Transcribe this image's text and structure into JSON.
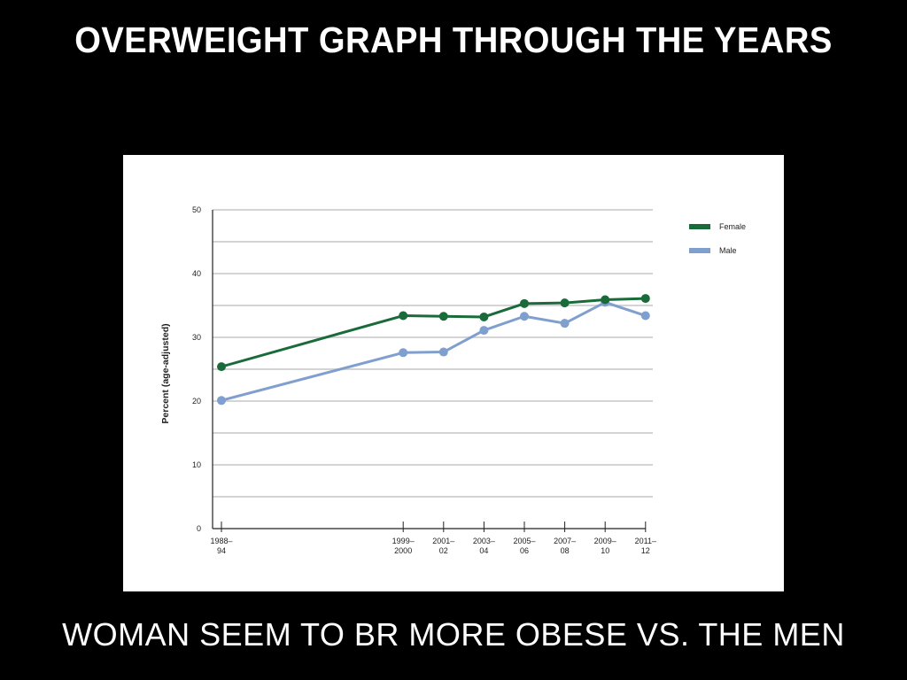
{
  "slide": {
    "title": "OVERWEIGHT GRAPH THROUGH THE YEARS",
    "caption": "WOMAN SEEM TO BR MORE OBESE VS. THE MEN"
  },
  "chart_data": {
    "type": "line",
    "title": "",
    "xlabel": "",
    "ylabel": "Percent (age-adjusted)",
    "ylim": [
      0,
      50
    ],
    "yticks": [
      0,
      10,
      20,
      30,
      40,
      50
    ],
    "grid": true,
    "legend_position": "top-right",
    "categories": [
      [
        "1988–",
        "94"
      ],
      [
        "1999–",
        "2000"
      ],
      [
        "2001–",
        "02"
      ],
      [
        "2003–",
        "04"
      ],
      [
        "2005–",
        "06"
      ],
      [
        "2007–",
        "08"
      ],
      [
        "2009–",
        "10"
      ],
      [
        "2011–",
        "12"
      ]
    ],
    "x": [
      1991,
      2000,
      2002,
      2004,
      2006,
      2008,
      2010,
      2012
    ],
    "series": [
      {
        "name": "Female",
        "color": "#1a6b3a",
        "values": [
          25.4,
          33.4,
          33.3,
          33.2,
          35.3,
          35.4,
          35.9,
          36.1
        ]
      },
      {
        "name": "Male",
        "color": "#7f9fcf",
        "values": [
          20.1,
          27.6,
          27.7,
          31.1,
          33.3,
          32.2,
          35.5,
          33.4
        ]
      }
    ]
  }
}
